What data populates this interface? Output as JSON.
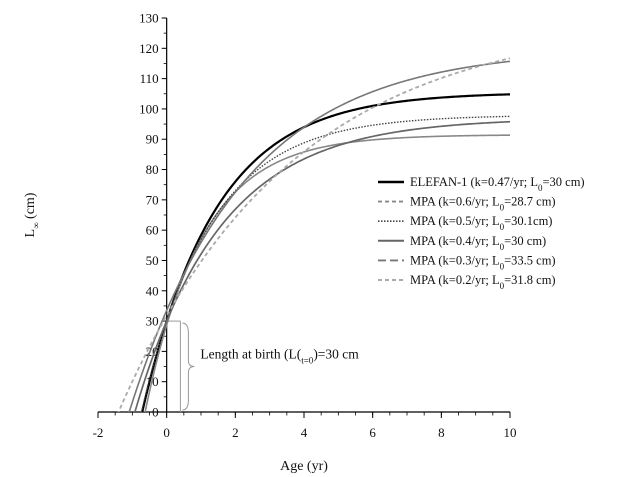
{
  "chart_data": {
    "type": "line",
    "xlabel": "Age (yr)",
    "ylabel_main": "L",
    "ylabel_sub": "∞",
    "ylabel_unit": " (cm)",
    "xlim": [
      -2,
      10
    ],
    "ylim": [
      0,
      130
    ],
    "x_ticks": [
      -2,
      0,
      2,
      4,
      6,
      8,
      10
    ],
    "y_ticks": [
      0,
      10,
      20,
      30,
      40,
      50,
      60,
      70,
      80,
      90,
      100,
      110,
      120,
      130
    ],
    "grid": false,
    "legend_position": "right",
    "series": [
      {
        "legend": {
          "pre": "ELEFAN-1 (k=0.47/yr; L",
          "sub": "0",
          "post": "=30 cm)"
        },
        "linf": 105.5,
        "k": 0.47,
        "l0": 30,
        "color": "#000000",
        "width": 2.2,
        "dash": "none",
        "legend_dash": "none"
      },
      {
        "legend": {
          "pre": "MPA (k=0.6/yr; L",
          "sub": "0",
          "post": "=28.7 cm)"
        },
        "linf": 91.5,
        "k": 0.6,
        "l0": 28.7,
        "color": "#888888",
        "width": 1.6,
        "dash": "none",
        "legend_dash": "4,3"
      },
      {
        "legend": {
          "pre": "MPA (k=0.5/yr; L",
          "sub": "0",
          "post": "=30.1cm)"
        },
        "linf": 98,
        "k": 0.5,
        "l0": 30.1,
        "color": "#444444",
        "width": 1.4,
        "dash": "1.5,1.5",
        "legend_dash": "1.5,1.5"
      },
      {
        "legend": {
          "pre": "MPA (k=0.4/yr; L",
          "sub": "0",
          "post": "=30 cm)"
        },
        "linf": 97,
        "k": 0.4,
        "l0": 30,
        "color": "#666666",
        "width": 1.7,
        "dash": "none",
        "legend_dash": "none"
      },
      {
        "legend": {
          "pre": "MPA (k=0.3/yr; L",
          "sub": "0",
          "post": "=33.5 cm)"
        },
        "linf": 120,
        "k": 0.3,
        "l0": 33.5,
        "color": "#777777",
        "width": 1.6,
        "dash": "none",
        "legend_dash": "8,4"
      },
      {
        "legend": {
          "pre": "MPA (k=0.2/yr; L",
          "sub": "0",
          "post": "=31.8 cm)"
        },
        "linf": 130,
        "k": 0.2,
        "l0": 31.8,
        "color": "#aaaaaa",
        "width": 1.8,
        "dash": "4,3",
        "legend_dash": "4,3"
      }
    ],
    "annotation": {
      "pre": "Length at birth (L(",
      "sub": "t=0",
      "post": ")=30 cm",
      "value_y": 30,
      "x_from": 0,
      "x_to": 0.4
    }
  }
}
